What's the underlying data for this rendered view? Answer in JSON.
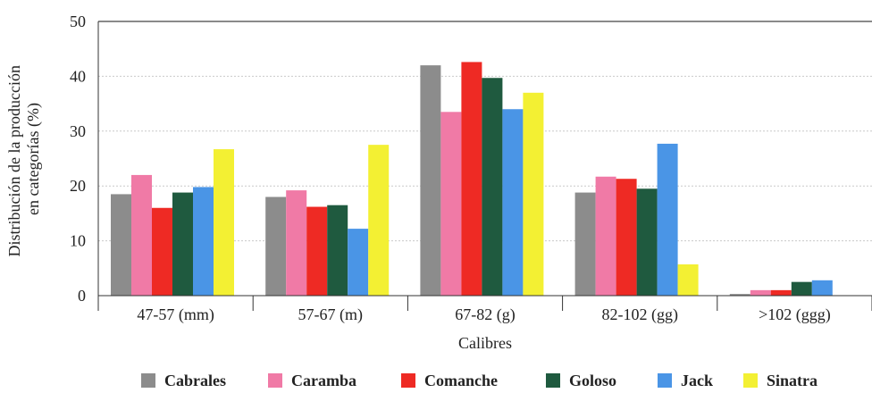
{
  "chart_data": {
    "type": "bar",
    "title": "",
    "xlabel": "Calibres",
    "ylabel": "Distribución de la producción en categorías (%)",
    "ylabel_lines": [
      "Distribución de la producción",
      "en categorías (%)"
    ],
    "ylim": [
      0,
      50
    ],
    "yticks": [
      "0",
      "10",
      "20",
      "30",
      "40",
      "50"
    ],
    "grid": true,
    "legend_position": "bottom",
    "categories": [
      "47-57 (mm)",
      "57-67 (m)",
      "67-82 (g)",
      "82-102 (gg)",
      ">102 (ggg)"
    ],
    "series": [
      {
        "name": "Cabrales",
        "color": "#8c8c8c",
        "values": [
          18.5,
          18.0,
          42.0,
          18.8,
          0.3
        ]
      },
      {
        "name": "Caramba",
        "color": "#f07aa6",
        "values": [
          22.0,
          19.2,
          33.5,
          21.7,
          1.0
        ]
      },
      {
        "name": "Comanche",
        "color": "#ee2a24",
        "values": [
          16.0,
          16.2,
          42.6,
          21.3,
          1.0
        ]
      },
      {
        "name": "Goloso",
        "color": "#1f5a3f",
        "values": [
          18.8,
          16.5,
          39.7,
          19.5,
          2.5
        ]
      },
      {
        "name": "Jack",
        "color": "#4a95e6",
        "values": [
          19.8,
          12.2,
          34.0,
          27.7,
          2.8
        ]
      },
      {
        "name": "Sinatra",
        "color": "#f3f033",
        "values": [
          26.7,
          27.5,
          37.0,
          5.7,
          0.0
        ]
      }
    ]
  }
}
